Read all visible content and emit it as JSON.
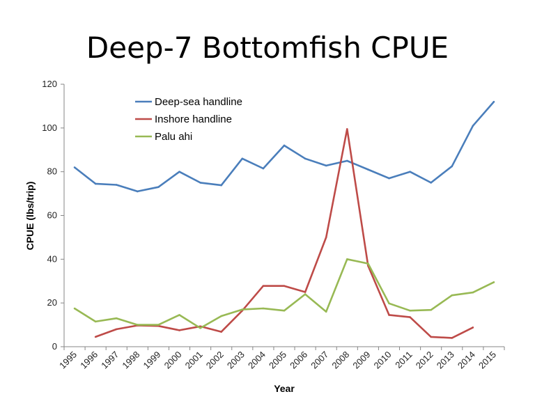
{
  "chart_data": {
    "type": "line",
    "title": "Deep-7 Bottomfish CPUE",
    "xlabel": "Year",
    "ylabel": "CPUE (lbs/trip)",
    "ylim": [
      0,
      120
    ],
    "yticks": [
      0,
      20,
      40,
      60,
      80,
      100,
      120
    ],
    "grid": false,
    "legend_position": "top-left",
    "x": [
      "1995",
      "1996",
      "1997",
      "1998",
      "1999",
      "2000",
      "2001",
      "2002",
      "2003",
      "2004",
      "2005",
      "2006",
      "2007",
      "2008",
      "2009",
      "2010",
      "2011",
      "2012",
      "2013",
      "2014",
      "2015"
    ],
    "series": [
      {
        "name": "Deep-sea handline",
        "color": "#4a7ebb",
        "values": [
          82,
          74.5,
          74,
          71,
          73,
          80,
          75,
          73.8,
          86,
          81.5,
          92,
          86,
          82.8,
          85,
          81,
          77,
          80,
          75,
          82.5,
          101,
          112
        ]
      },
      {
        "name": "Inshore handline",
        "color": "#be4b48",
        "values": [
          null,
          4.5,
          8,
          9.7,
          9.5,
          7.5,
          9.3,
          6.8,
          16.5,
          27.8,
          27.8,
          25,
          50,
          99.5,
          37,
          14.5,
          13.5,
          4.5,
          4,
          8.8,
          null
        ]
      },
      {
        "name": "Palu ahi",
        "color": "#98b954",
        "values": [
          17.5,
          11.5,
          13,
          10,
          10,
          14.5,
          8.5,
          14,
          17,
          17.5,
          16.5,
          24,
          16,
          40,
          38,
          19.8,
          16.5,
          16.8,
          23.5,
          24.8,
          29.5
        ]
      }
    ]
  }
}
